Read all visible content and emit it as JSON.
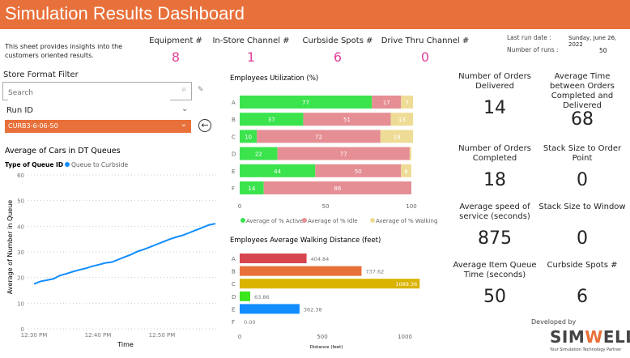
{
  "header": {
    "title": "Simulation Results Dashboard"
  },
  "intro": "This sheet provides insights into the customers oriented results.",
  "counters": [
    {
      "label": "Equipment #",
      "value": "8"
    },
    {
      "label": "In-Store Channel #",
      "value": "1"
    },
    {
      "label": "Curbside Spots #",
      "value": "6"
    },
    {
      "label": "Drive Thru Channel #",
      "value": "0"
    }
  ],
  "run_info": {
    "date_label": "Last run date :",
    "date": "Sunday, June 26, 2022",
    "runs_label": "Number of runs :",
    "runs": "50"
  },
  "filter": {
    "title": "Store Format Filter",
    "search_placeholder": "Search",
    "run_label": "Run ID",
    "run_value": "CURB3-6-06-50"
  },
  "colors": {
    "accent": "#E8703A",
    "counter": "#E0409A",
    "active": "#3BE34D",
    "idle": "#E58E94",
    "walking": "#EEDC96",
    "line": "#118DFF"
  },
  "kpis": [
    {
      "label": "Number of Orders Delivered",
      "value": "14"
    },
    {
      "label": "Average Time between Orders Completed and Delivered",
      "value": "68"
    },
    {
      "label": "Number of Orders Completed",
      "value": "18"
    },
    {
      "label": "Stack Size to Order Point",
      "value": "0"
    },
    {
      "label": "Average speed of service (seconds)",
      "value": "875"
    },
    {
      "label": "Stack Size to Window",
      "value": "0"
    },
    {
      "label": "Average Item Queue Time (seconds)",
      "value": "50"
    },
    {
      "label": "Curbside Spots #",
      "value": "6"
    }
  ],
  "footer": {
    "developed_by": "Developed by",
    "logo": "SIMWELL",
    "tagline": "Your Simulation Technology Partner"
  },
  "chart_data": [
    {
      "type": "line",
      "title": "Average of Cars in DT Queues",
      "legend_title": "Type of Queue ID",
      "xlabel": "Time",
      "ylabel": "Average of Number in Queue",
      "ylim": [
        0,
        60
      ],
      "yticks": [
        "0",
        "10",
        "20",
        "30",
        "40",
        "50",
        "60"
      ],
      "xticks": [
        "12:30 PM",
        "12:40 PM",
        "12:50 PM"
      ],
      "grid": true,
      "legend": "top-left",
      "series": [
        {
          "name": "Queue to Curbside",
          "x": [
            "12:30",
            "12:31",
            "12:32",
            "12:33",
            "12:34",
            "12:35",
            "12:36",
            "12:37",
            "12:38",
            "12:39",
            "12:40",
            "12:41",
            "12:42",
            "12:43",
            "12:44",
            "12:45",
            "12:46",
            "12:47",
            "12:48",
            "12:49",
            "12:50",
            "12:51",
            "12:52",
            "12:53",
            "12:54",
            "12:55",
            "12:56",
            "12:57",
            "12:58"
          ],
          "values": [
            17.5,
            18.5,
            19,
            19.5,
            20.8,
            21.5,
            22.3,
            23,
            23.6,
            24.4,
            25,
            25.7,
            26,
            27,
            28,
            29,
            30.2,
            31,
            32,
            33,
            34,
            35,
            35.8,
            36.5,
            37.5,
            38.5,
            39.5,
            40.5,
            41
          ]
        }
      ]
    },
    {
      "type": "bar",
      "stacked": true,
      "orientation": "horizontal",
      "title": "Employees Utilization (%)",
      "categories": [
        "A",
        "B",
        "C",
        "D",
        "E",
        "F"
      ],
      "xlim": [
        0,
        100
      ],
      "xticks": [
        "0",
        "50",
        "100"
      ],
      "legend": "bottom",
      "series": [
        {
          "name": "Average of % Active",
          "values": [
            77,
            37,
            10,
            22,
            44,
            14
          ]
        },
        {
          "name": "Average of % Idle",
          "values": [
            17,
            51,
            72,
            77,
            50,
            86
          ]
        },
        {
          "name": "Average of % Walking",
          "values": [
            7,
            13,
            19,
            1,
            6,
            0
          ]
        }
      ]
    },
    {
      "type": "bar",
      "orientation": "horizontal",
      "title": "Employees Average Walking Distance (feet)",
      "xlabel": "Distance (feet)",
      "categories": [
        "A",
        "B",
        "C",
        "D",
        "E",
        "F"
      ],
      "values": [
        404.84,
        737.62,
        1089.36,
        63.86,
        362.38,
        0.0
      ],
      "labels": [
        "404.84",
        "737.62",
        "1089.36",
        "63.86",
        "362.38",
        "0.00"
      ],
      "bar_colors": [
        "#D64550",
        "#E8703A",
        "#D9B300",
        "#3CE51E",
        "#118DFF",
        "#999999"
      ],
      "xlim": [
        0,
        1100
      ],
      "xticks": [
        "0",
        "500",
        "1000"
      ]
    }
  ]
}
